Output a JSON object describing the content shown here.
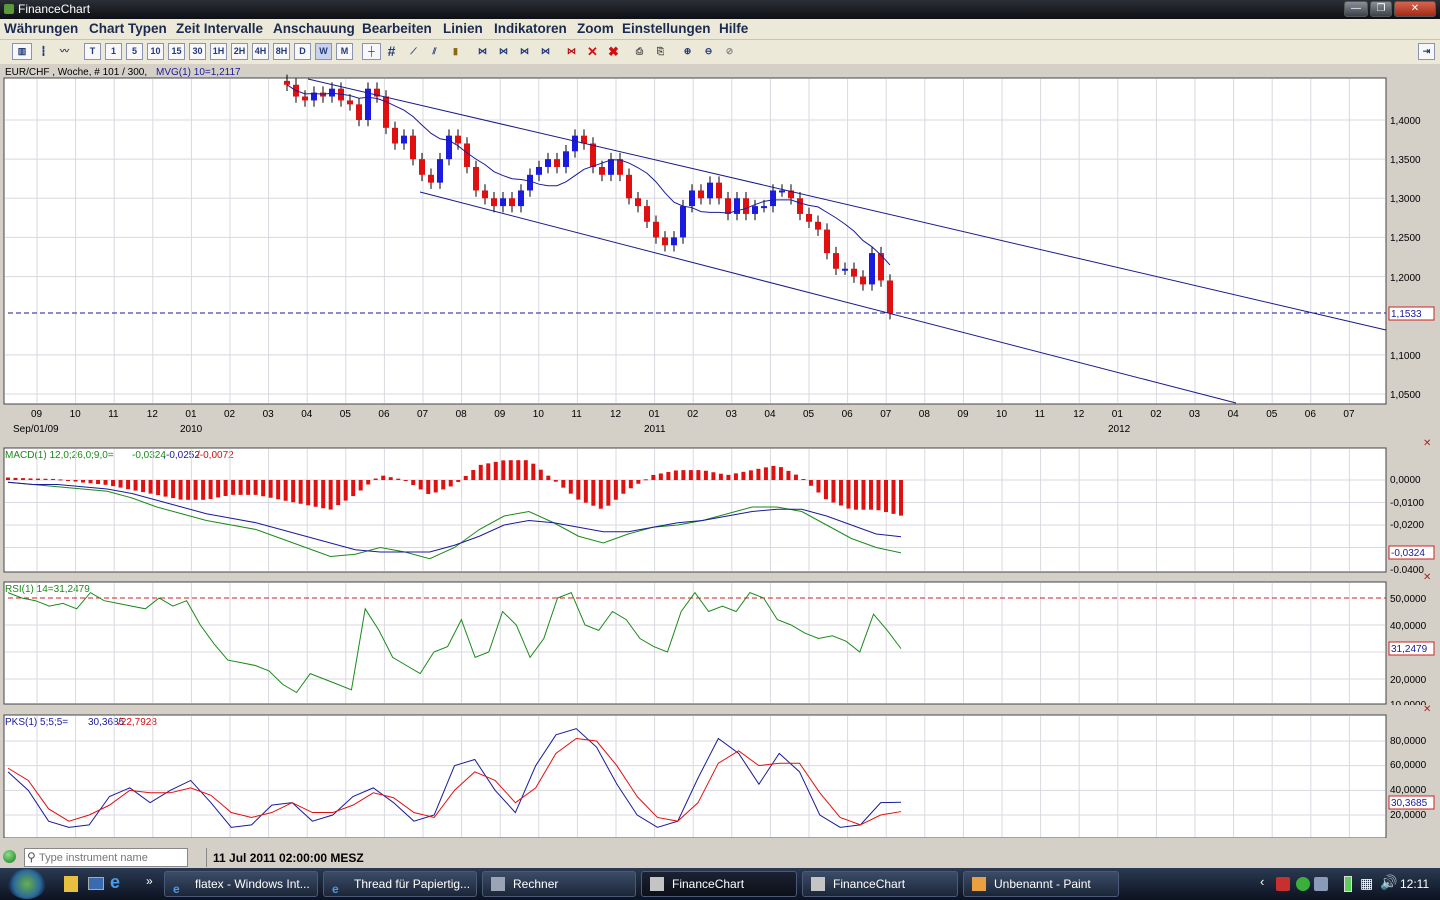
{
  "window": {
    "title": "FinanceChart",
    "minimize": "—",
    "maximize": "❐",
    "close": "✕"
  },
  "menu": [
    "Währungen",
    "Chart Typen",
    "Zeit Intervalle",
    "Anschauung",
    "Bearbeiten",
    "Linien",
    "Indikatoren",
    "Zoom",
    "Einstellungen",
    "Hilfe"
  ],
  "toolbar": {
    "intervals": [
      "T",
      "1",
      "5",
      "10",
      "15",
      "30",
      "1H",
      "2H",
      "4H",
      "8H",
      "D",
      "W",
      "M"
    ]
  },
  "main_chart": {
    "header_symbol": "EUR/CHF , Woche, # 101 / 300,",
    "header_indicator": "MVG(1) 10=1,2117",
    "price_label": "1,1533",
    "y_ticks": [
      "1,4000",
      "1,3500",
      "1,3000",
      "1,2500",
      "1,2000",
      "1,1000",
      "1,0500"
    ],
    "x_months": [
      "09",
      "10",
      "11",
      "12",
      "01",
      "02",
      "03",
      "04",
      "05",
      "06",
      "07",
      "08",
      "09",
      "10",
      "11",
      "12",
      "01",
      "02",
      "03",
      "04",
      "05",
      "06",
      "07",
      "08",
      "09",
      "10",
      "11",
      "12",
      "01",
      "02",
      "03",
      "04",
      "05",
      "06",
      "07"
    ],
    "x_years": [
      "Sep/01/09",
      "2010",
      "2011",
      "2012"
    ]
  },
  "chart_data": [
    {
      "type": "candlestick",
      "title": "EUR/CHF , Woche",
      "y_ticks": [
        1.4,
        1.35,
        1.3,
        1.25,
        1.2,
        1.1,
        1.05
      ],
      "ylim": [
        1.04,
        1.455
      ],
      "last_price": 1.1533,
      "moving_average": {
        "name": "MVG(1) 10",
        "last": 1.2117
      },
      "series": [
        {
          "name": "close",
          "values": [
            1.445,
            1.43,
            1.425,
            1.435,
            1.43,
            1.44,
            1.425,
            1.42,
            1.4,
            1.44,
            1.43,
            1.39,
            1.37,
            1.38,
            1.35,
            1.33,
            1.32,
            1.35,
            1.38,
            1.37,
            1.34,
            1.31,
            1.3,
            1.29,
            1.3,
            1.29,
            1.31,
            1.33,
            1.34,
            1.35,
            1.34,
            1.36,
            1.38,
            1.37,
            1.34,
            1.33,
            1.35,
            1.33,
            1.3,
            1.29,
            1.27,
            1.25,
            1.24,
            1.25,
            1.29,
            1.31,
            1.3,
            1.32,
            1.3,
            1.28,
            1.3,
            1.28,
            1.29,
            1.29,
            1.31,
            1.31,
            1.3,
            1.28,
            1.27,
            1.26,
            1.23,
            1.21,
            1.21,
            1.2,
            1.19,
            1.23,
            1.195,
            1.1533
          ]
        }
      ],
      "trend_lines": [
        {
          "from": {
            "x": "2009-10",
            "y": 1.448
          },
          "to": {
            "x": "2012-07",
            "y": 1.127
          }
        },
        {
          "from": {
            "x": "2010-07",
            "y": 1.305
          },
          "to": {
            "x": "2012-04",
            "y": 1.04
          }
        }
      ]
    },
    {
      "type": "line",
      "title": "MACD(1) 12,0;26,0;9,0",
      "header_values": [
        "-0,0324",
        "-0,0252",
        "-0,0072"
      ],
      "y_ticks": [
        "0,0000",
        "-0,0100",
        "-0,0200",
        "-0,0300",
        "-0,0400"
      ],
      "last_label": "-0,0324",
      "series": [
        {
          "name": "MACD",
          "color": "#1a8a1a",
          "values": [
            -0.001,
            -0.002,
            -0.003,
            -0.004,
            -0.005,
            -0.008,
            -0.012,
            -0.015,
            -0.018,
            -0.02,
            -0.022,
            -0.026,
            -0.03,
            -0.034,
            -0.033,
            -0.03,
            -0.032,
            -0.035,
            -0.03,
            -0.022,
            -0.016,
            -0.014,
            -0.019,
            -0.025,
            -0.028,
            -0.024,
            -0.021,
            -0.02,
            -0.018,
            -0.015,
            -0.012,
            -0.012,
            -0.014,
            -0.02,
            -0.026,
            -0.03,
            -0.0324
          ]
        },
        {
          "name": "Signal",
          "color": "#1a1a8a",
          "values": [
            -0.001,
            -0.002,
            -0.002,
            -0.003,
            -0.004,
            -0.006,
            -0.009,
            -0.012,
            -0.015,
            -0.017,
            -0.019,
            -0.022,
            -0.025,
            -0.028,
            -0.031,
            -0.032,
            -0.032,
            -0.032,
            -0.029,
            -0.025,
            -0.02,
            -0.018,
            -0.019,
            -0.021,
            -0.023,
            -0.023,
            -0.021,
            -0.019,
            -0.018,
            -0.016,
            -0.014,
            -0.013,
            -0.013,
            -0.016,
            -0.02,
            -0.024,
            -0.0252
          ]
        },
        {
          "name": "Histogram",
          "color": "#e01010",
          "values": [
            0.0005,
            0.0003,
            0.0002,
            -0.0005,
            -0.001,
            -0.002,
            -0.003,
            -0.004,
            -0.004,
            -0.003,
            -0.003,
            -0.004,
            -0.005,
            -0.006,
            -0.003,
            0.001,
            0.0,
            -0.003,
            -0.001,
            0.003,
            0.004,
            0.004,
            0.0,
            -0.004,
            -0.006,
            -0.002,
            0.001,
            0.002,
            0.002,
            0.001,
            0.002,
            0.003,
            0.0005,
            -0.004,
            -0.006,
            -0.006,
            -0.0072
          ]
        }
      ]
    },
    {
      "type": "line",
      "title": "RSI(1) 14",
      "header_value": "31,2479",
      "y_ticks": [
        "50,0000",
        "40,0000",
        "30,0000",
        "20,0000",
        "10,0000"
      ],
      "last_label": "31,2479",
      "reference_line": 50,
      "series": [
        {
          "name": "RSI",
          "color": "#1a8a1a",
          "values": [
            52,
            50,
            49,
            47,
            48,
            46,
            52,
            49,
            48,
            47,
            46,
            50,
            47,
            49,
            40,
            33,
            27,
            26,
            25,
            23,
            18,
            15,
            22,
            20,
            18,
            16,
            46,
            38,
            28,
            25,
            22,
            30,
            32,
            42,
            28,
            30,
            45,
            40,
            28,
            35,
            50,
            52,
            40,
            38,
            45,
            42,
            35,
            32,
            30,
            45,
            52,
            45,
            47,
            45,
            52,
            50,
            42,
            40,
            37,
            35,
            36,
            34,
            30,
            44,
            38,
            31.2479
          ]
        }
      ]
    },
    {
      "type": "line",
      "title": "PKS(1) 5;5;5",
      "header_values": [
        "30,3685",
        "22,7928"
      ],
      "y_ticks": [
        "80,0000",
        "60,0000",
        "40,0000",
        "20,0000"
      ],
      "last_label": "30,3685",
      "series": [
        {
          "name": "%K",
          "color": "#1a1a8a",
          "values": [
            55,
            40,
            15,
            10,
            12,
            35,
            42,
            30,
            40,
            48,
            30,
            10,
            12,
            28,
            30,
            15,
            20,
            35,
            42,
            30,
            15,
            20,
            60,
            65,
            40,
            22,
            60,
            85,
            90,
            75,
            45,
            20,
            10,
            15,
            50,
            82,
            70,
            45,
            70,
            55,
            20,
            10,
            12,
            30,
            30.3685
          ]
        },
        {
          "name": "%D",
          "color": "#e01010",
          "values": [
            58,
            48,
            25,
            15,
            20,
            28,
            40,
            38,
            38,
            42,
            36,
            22,
            18,
            22,
            30,
            22,
            22,
            28,
            38,
            34,
            22,
            18,
            40,
            55,
            48,
            30,
            42,
            70,
            82,
            80,
            60,
            35,
            18,
            15,
            30,
            62,
            72,
            60,
            62,
            62,
            38,
            18,
            12,
            20,
            22.7928
          ]
        }
      ]
    }
  ],
  "macd_header": {
    "prefix": "MACD(1) 12,0;26,0;9,0=",
    "v1": "-0,0324",
    "sep": ",",
    "v2": "-0,0252",
    "v3": "/-0,0072"
  },
  "rsi_header": "RSI(1) 14=31,2479",
  "pks_header": {
    "prefix": "PKS(1) 5;5;5=",
    "v1": "30,3685",
    "v2": "/22,7928"
  },
  "status": {
    "search_placeholder": "Type instrument name",
    "datetime": "11 Jul 2011 02:00:00 MESZ"
  },
  "taskbar": {
    "tasks": [
      "flatex - Windows Int...",
      "Thread für Papiertig...",
      "Rechner",
      "FinanceChart",
      "FinanceChart",
      "Unbenannt - Paint"
    ],
    "clock": "12:11"
  }
}
